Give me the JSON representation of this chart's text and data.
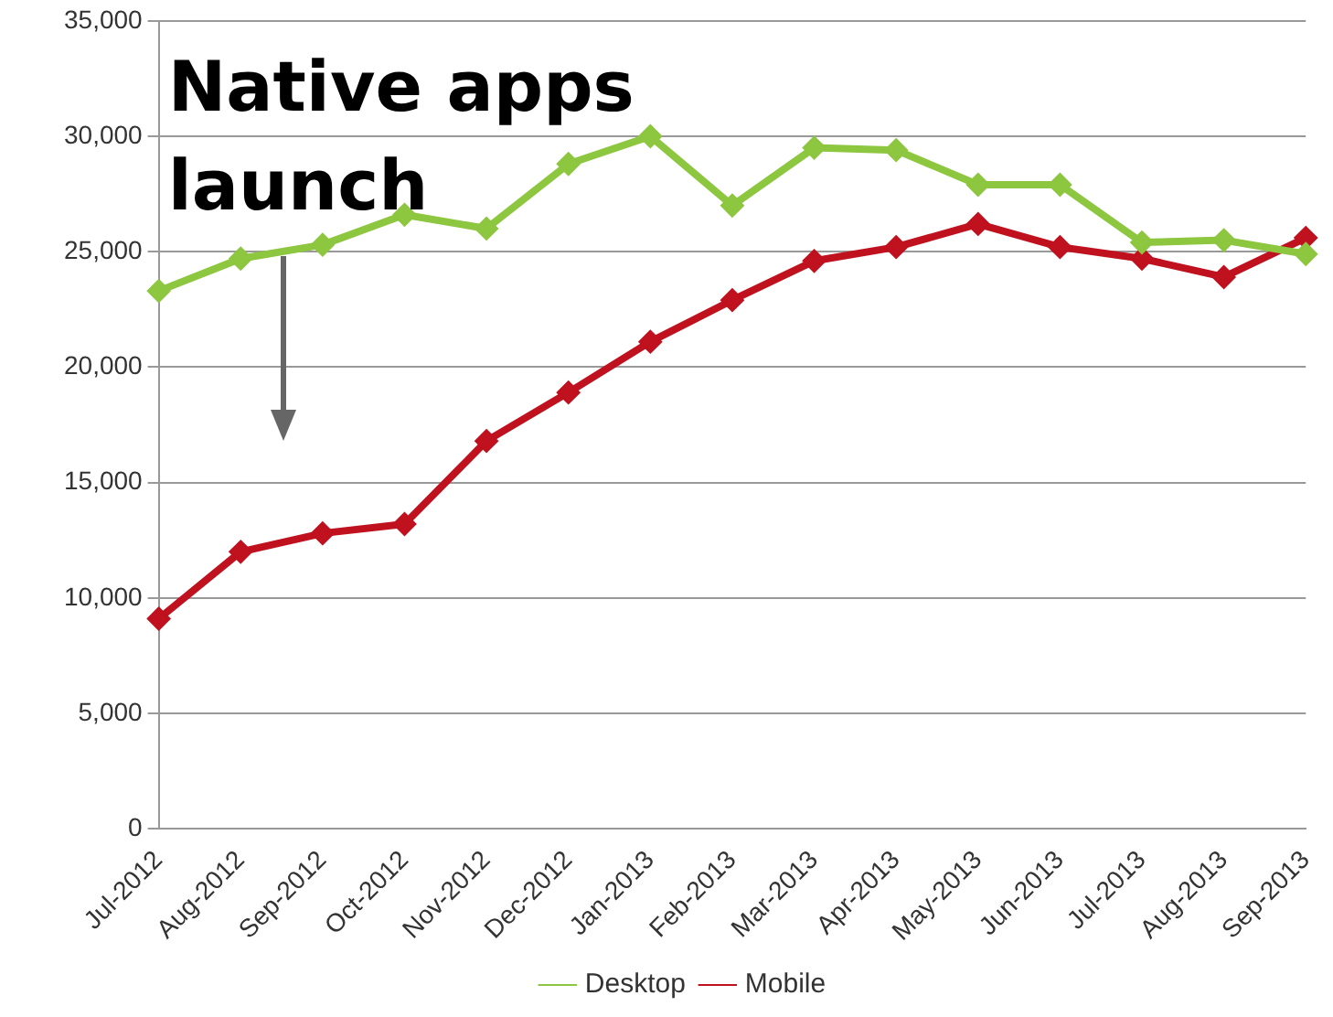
{
  "chart_data": {
    "type": "line",
    "categories": [
      "Jul-2012",
      "Aug-2012",
      "Sep-2012",
      "Oct-2012",
      "Nov-2012",
      "Dec-2012",
      "Jan-2013",
      "Feb-2013",
      "Mar-2013",
      "Apr-2013",
      "May-2013",
      "Jun-2013",
      "Jul-2013",
      "Aug-2013",
      "Sep-2013"
    ],
    "series": [
      {
        "name": "Desktop",
        "color": "#8dc63f",
        "values": [
          23300,
          24700,
          25300,
          26600,
          26000,
          28800,
          30000,
          27000,
          29500,
          29400,
          27900,
          27900,
          25400,
          25500,
          24900
        ]
      },
      {
        "name": "Mobile",
        "color": "#c0111f",
        "values": [
          9100,
          12000,
          12800,
          13200,
          16800,
          18900,
          21100,
          22900,
          24600,
          25200,
          26200,
          25200,
          24700,
          23900,
          25600
        ]
      }
    ],
    "ylim": [
      0,
      35000
    ],
    "yticks": [
      {
        "value": 0,
        "label": "0"
      },
      {
        "value": 5000,
        "label": "5,000"
      },
      {
        "value": 10000,
        "label": "10,000"
      },
      {
        "value": 15000,
        "label": "15,000"
      },
      {
        "value": 20000,
        "label": "20,000"
      },
      {
        "value": 25000,
        "label": "25,000"
      },
      {
        "value": 30000,
        "label": "30,000"
      },
      {
        "value": 35000,
        "label": "35,000"
      }
    ],
    "grid": "y",
    "legend": "bottom",
    "marker": "diamond",
    "line_style": "solid",
    "annotations": [
      "Native apps launch"
    ]
  }
}
